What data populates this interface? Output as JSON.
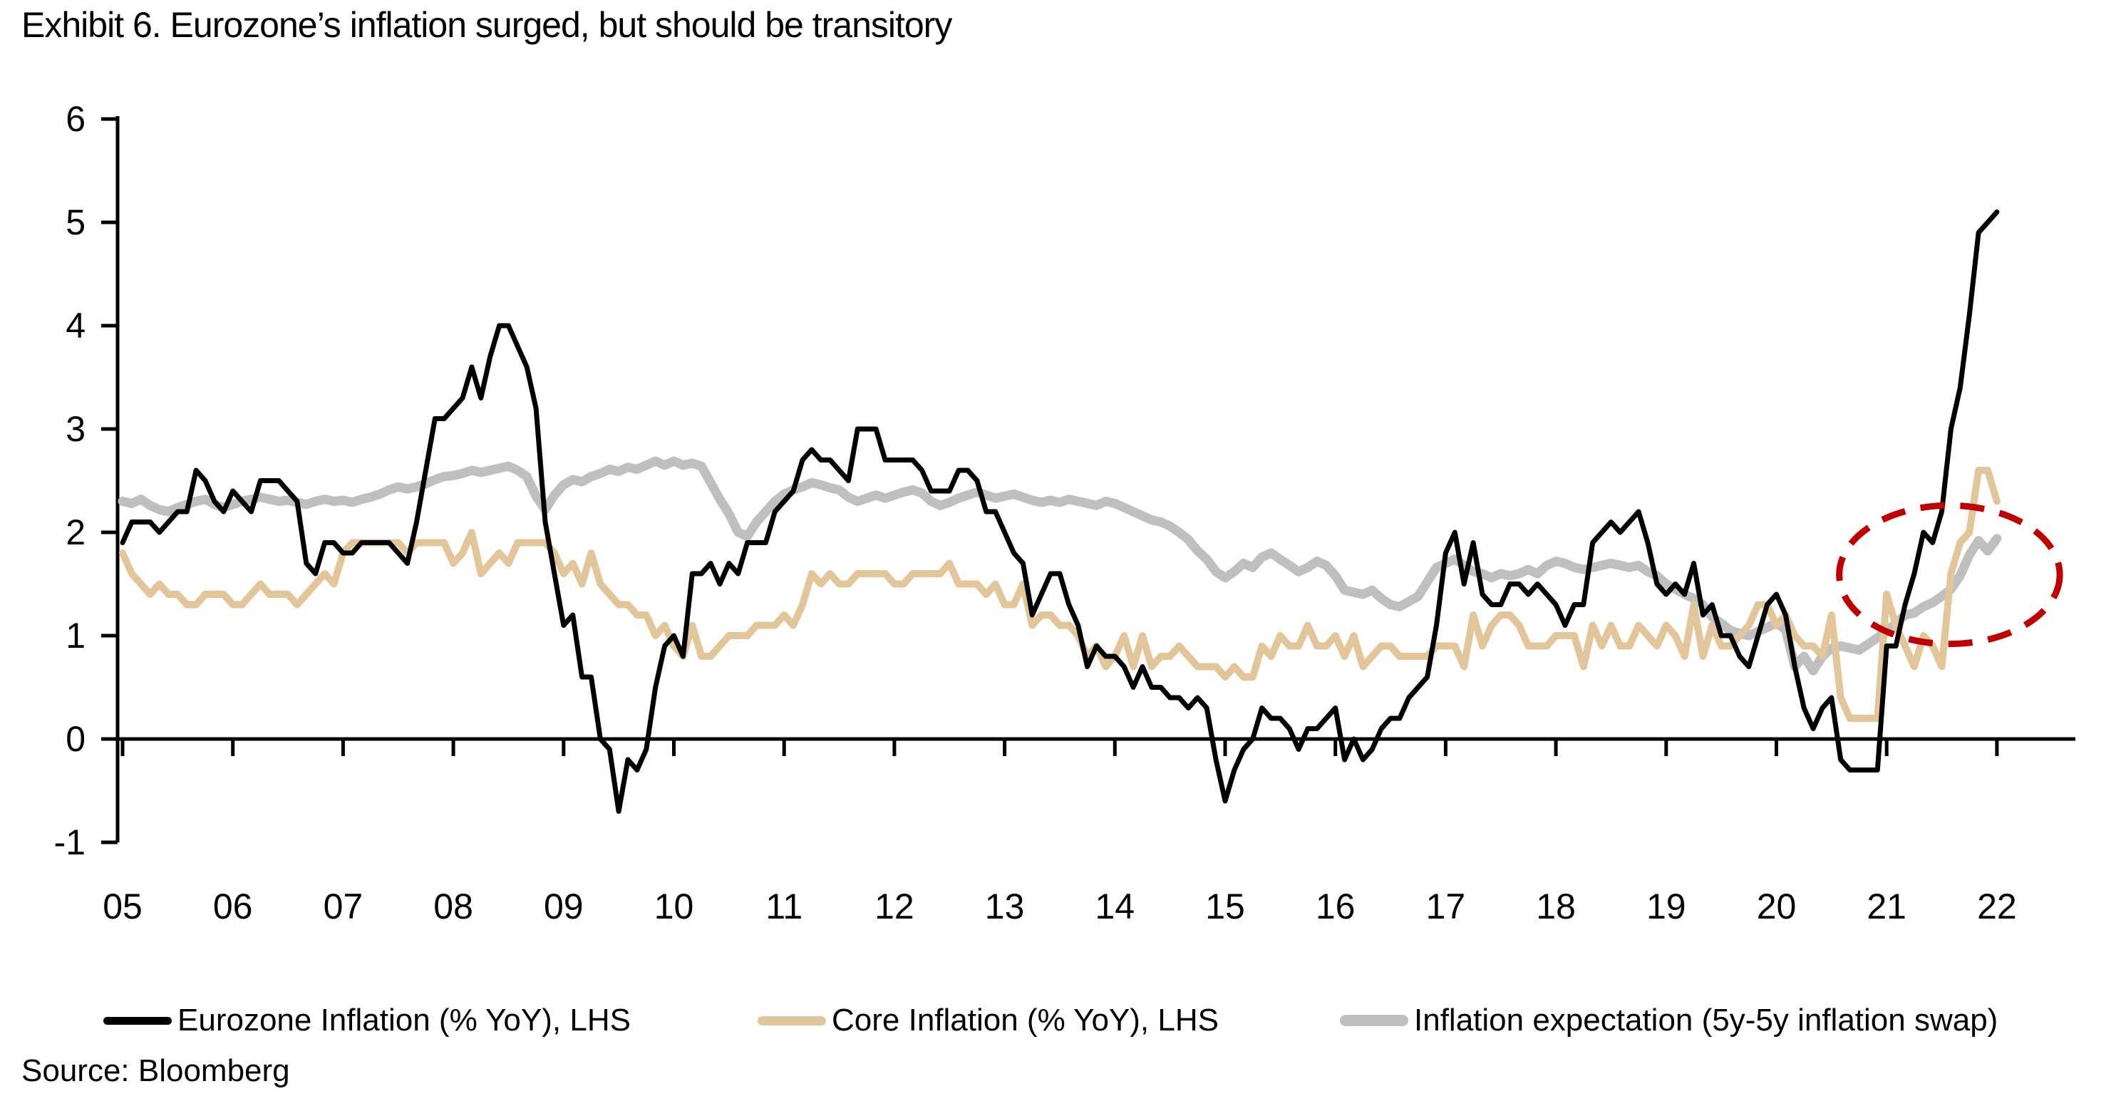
{
  "page": {
    "title": "Exhibit 6. Eurozone’s inflation surged, but should be transitory",
    "source": "Source: Bloomberg"
  },
  "chart_data": {
    "type": "line",
    "title": "Exhibit 6. Eurozone’s inflation surged, but should be transitory",
    "xlabel": "",
    "ylabel": "",
    "ylim": [
      -1,
      6
    ],
    "y_ticks": [
      6,
      5,
      4,
      3,
      2,
      1,
      0,
      -1
    ],
    "x_tick_labels": [
      "05",
      "06",
      "07",
      "08",
      "09",
      "10",
      "11",
      "12",
      "13",
      "14",
      "15",
      "16",
      "17",
      "18",
      "19",
      "20",
      "21",
      "22"
    ],
    "x_start_year": 2005,
    "frequency": "monthly",
    "months_start": "2005-01",
    "months_end": "2022-01",
    "grid": false,
    "legend_position": "bottom",
    "zero_axis_line": true,
    "series": [
      {
        "name": "Eurozone Inflation (% YoY), LHS",
        "color": "#000000",
        "values": [
          1.9,
          2.1,
          2.1,
          2.1,
          2.0,
          2.1,
          2.2,
          2.2,
          2.6,
          2.5,
          2.3,
          2.2,
          2.4,
          2.3,
          2.2,
          2.5,
          2.5,
          2.5,
          2.4,
          2.3,
          1.7,
          1.6,
          1.9,
          1.9,
          1.8,
          1.8,
          1.9,
          1.9,
          1.9,
          1.9,
          1.8,
          1.7,
          2.1,
          2.6,
          3.1,
          3.1,
          3.2,
          3.3,
          3.6,
          3.3,
          3.7,
          4.0,
          4.0,
          3.8,
          3.6,
          3.2,
          2.1,
          1.6,
          1.1,
          1.2,
          0.6,
          0.6,
          0.0,
          -0.1,
          -0.7,
          -0.2,
          -0.3,
          -0.1,
          0.5,
          0.9,
          1.0,
          0.8,
          1.6,
          1.6,
          1.7,
          1.5,
          1.7,
          1.6,
          1.9,
          1.9,
          1.9,
          2.2,
          2.3,
          2.4,
          2.7,
          2.8,
          2.7,
          2.7,
          2.6,
          2.5,
          3.0,
          3.0,
          3.0,
          2.7,
          2.7,
          2.7,
          2.7,
          2.6,
          2.4,
          2.4,
          2.4,
          2.6,
          2.6,
          2.5,
          2.2,
          2.2,
          2.0,
          1.8,
          1.7,
          1.2,
          1.4,
          1.6,
          1.6,
          1.3,
          1.1,
          0.7,
          0.9,
          0.8,
          0.8,
          0.7,
          0.5,
          0.7,
          0.5,
          0.5,
          0.4,
          0.4,
          0.3,
          0.4,
          0.3,
          -0.2,
          -0.6,
          -0.3,
          -0.1,
          0.0,
          0.3,
          0.2,
          0.2,
          0.1,
          -0.1,
          0.1,
          0.1,
          0.2,
          0.3,
          -0.2,
          0.0,
          -0.2,
          -0.1,
          0.1,
          0.2,
          0.2,
          0.4,
          0.5,
          0.6,
          1.1,
          1.8,
          2.0,
          1.5,
          1.9,
          1.4,
          1.3,
          1.3,
          1.5,
          1.5,
          1.4,
          1.5,
          1.4,
          1.3,
          1.1,
          1.3,
          1.3,
          1.9,
          2.0,
          2.1,
          2.0,
          2.1,
          2.2,
          1.9,
          1.5,
          1.4,
          1.5,
          1.4,
          1.7,
          1.2,
          1.3,
          1.0,
          1.0,
          0.8,
          0.7,
          1.0,
          1.3,
          1.4,
          1.2,
          0.7,
          0.3,
          0.1,
          0.3,
          0.4,
          -0.2,
          -0.3,
          -0.3,
          -0.3,
          -0.3,
          0.9,
          0.9,
          1.3,
          1.6,
          2.0,
          1.9,
          2.2,
          3.0,
          3.4,
          4.1,
          4.9,
          5.0,
          5.1
        ]
      },
      {
        "name": "Core Inflation (% YoY), LHS",
        "color": "#E2C69A",
        "values": [
          1.8,
          1.6,
          1.5,
          1.4,
          1.5,
          1.4,
          1.4,
          1.3,
          1.3,
          1.4,
          1.4,
          1.4,
          1.3,
          1.3,
          1.4,
          1.5,
          1.4,
          1.4,
          1.4,
          1.3,
          1.4,
          1.5,
          1.6,
          1.5,
          1.8,
          1.9,
          1.9,
          1.9,
          1.9,
          1.9,
          1.9,
          1.8,
          1.9,
          1.9,
          1.9,
          1.9,
          1.7,
          1.8,
          2.0,
          1.6,
          1.7,
          1.8,
          1.7,
          1.9,
          1.9,
          1.9,
          1.9,
          1.8,
          1.6,
          1.7,
          1.5,
          1.8,
          1.5,
          1.4,
          1.3,
          1.3,
          1.2,
          1.2,
          1.0,
          1.1,
          0.9,
          0.8,
          1.1,
          0.8,
          0.8,
          0.9,
          1.0,
          1.0,
          1.0,
          1.1,
          1.1,
          1.1,
          1.2,
          1.1,
          1.3,
          1.6,
          1.5,
          1.6,
          1.5,
          1.5,
          1.6,
          1.6,
          1.6,
          1.6,
          1.5,
          1.5,
          1.6,
          1.6,
          1.6,
          1.6,
          1.7,
          1.5,
          1.5,
          1.5,
          1.4,
          1.5,
          1.3,
          1.3,
          1.5,
          1.1,
          1.2,
          1.2,
          1.1,
          1.1,
          1.0,
          0.8,
          0.9,
          0.7,
          0.8,
          1.0,
          0.7,
          1.0,
          0.7,
          0.8,
          0.8,
          0.9,
          0.8,
          0.7,
          0.7,
          0.7,
          0.6,
          0.7,
          0.6,
          0.6,
          0.9,
          0.8,
          1.0,
          0.9,
          0.9,
          1.1,
          0.9,
          0.9,
          1.0,
          0.8,
          1.0,
          0.7,
          0.8,
          0.9,
          0.9,
          0.8,
          0.8,
          0.8,
          0.8,
          0.9,
          0.9,
          0.9,
          0.7,
          1.2,
          0.9,
          1.1,
          1.2,
          1.2,
          1.1,
          0.9,
          0.9,
          0.9,
          1.0,
          1.0,
          1.0,
          0.7,
          1.1,
          0.9,
          1.1,
          0.9,
          0.9,
          1.1,
          1.0,
          0.9,
          1.1,
          1.0,
          0.8,
          1.3,
          0.8,
          1.1,
          0.9,
          0.9,
          1.0,
          1.1,
          1.3,
          1.3,
          1.1,
          1.2,
          1.0,
          0.9,
          0.9,
          0.8,
          1.2,
          0.4,
          0.2,
          0.2,
          0.2,
          0.2,
          1.4,
          1.1,
          0.9,
          0.7,
          1.0,
          0.9,
          0.7,
          1.6,
          1.9,
          2.0,
          2.6,
          2.6,
          2.3
        ]
      },
      {
        "name": "Inflation expectation (5y-5y inflation swap)",
        "color": "#BFBFC1",
        "values": [
          2.3,
          2.28,
          2.32,
          2.26,
          2.22,
          2.2,
          2.24,
          2.27,
          2.3,
          2.32,
          2.27,
          2.24,
          2.27,
          2.3,
          2.32,
          2.34,
          2.32,
          2.3,
          2.31,
          2.29,
          2.27,
          2.3,
          2.32,
          2.3,
          2.31,
          2.29,
          2.32,
          2.34,
          2.37,
          2.41,
          2.44,
          2.42,
          2.44,
          2.47,
          2.51,
          2.54,
          2.55,
          2.57,
          2.6,
          2.58,
          2.6,
          2.62,
          2.64,
          2.6,
          2.54,
          2.35,
          2.22,
          2.36,
          2.46,
          2.51,
          2.49,
          2.54,
          2.57,
          2.61,
          2.59,
          2.63,
          2.61,
          2.65,
          2.69,
          2.65,
          2.69,
          2.65,
          2.67,
          2.64,
          2.48,
          2.32,
          2.18,
          2.0,
          1.96,
          2.1,
          2.2,
          2.3,
          2.37,
          2.41,
          2.44,
          2.48,
          2.46,
          2.43,
          2.41,
          2.34,
          2.3,
          2.33,
          2.36,
          2.33,
          2.36,
          2.39,
          2.41,
          2.38,
          2.3,
          2.26,
          2.29,
          2.33,
          2.36,
          2.39,
          2.36,
          2.33,
          2.35,
          2.37,
          2.34,
          2.31,
          2.29,
          2.31,
          2.29,
          2.32,
          2.3,
          2.28,
          2.26,
          2.3,
          2.28,
          2.24,
          2.2,
          2.16,
          2.12,
          2.1,
          2.06,
          2.0,
          1.93,
          1.82,
          1.74,
          1.62,
          1.56,
          1.62,
          1.7,
          1.66,
          1.76,
          1.8,
          1.74,
          1.68,
          1.62,
          1.66,
          1.72,
          1.68,
          1.58,
          1.44,
          1.42,
          1.4,
          1.44,
          1.36,
          1.3,
          1.28,
          1.33,
          1.38,
          1.52,
          1.66,
          1.7,
          1.74,
          1.68,
          1.62,
          1.6,
          1.56,
          1.6,
          1.58,
          1.6,
          1.64,
          1.6,
          1.68,
          1.72,
          1.7,
          1.66,
          1.64,
          1.66,
          1.68,
          1.7,
          1.68,
          1.66,
          1.68,
          1.62,
          1.58,
          1.5,
          1.45,
          1.4,
          1.36,
          1.3,
          1.18,
          1.12,
          1.05,
          1.02,
          1.0,
          1.04,
          1.08,
          1.12,
          1.06,
          0.7,
          0.8,
          0.66,
          0.8,
          0.88,
          0.9,
          0.88,
          0.86,
          0.92,
          0.98,
          1.04,
          1.12,
          1.2,
          1.22,
          1.28,
          1.32,
          1.38,
          1.45,
          1.58,
          1.78,
          1.92,
          1.82,
          1.94
        ]
      }
    ],
    "annotation": {
      "shape": "dashed-ellipse",
      "meaning": "highlights 2021 rise in inflation expectations",
      "color": "#C00000",
      "center_x_year": 2021.57,
      "center_y_value": 1.59,
      "radius_x_years": 1.0,
      "radius_y_values": 0.67
    },
    "source": "Source: Bloomberg"
  }
}
